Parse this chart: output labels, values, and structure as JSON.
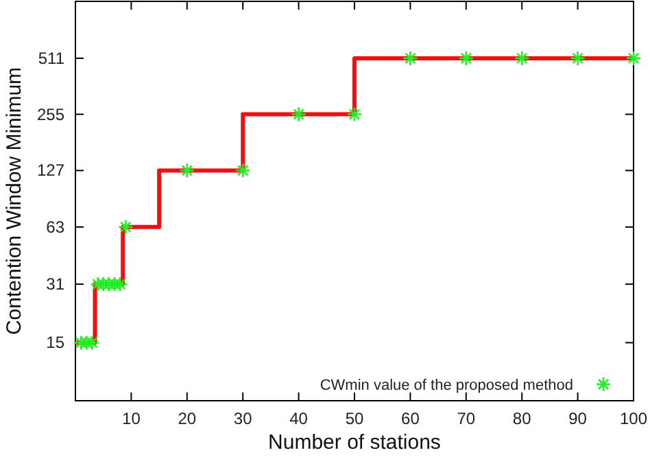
{
  "chart_data": {
    "type": "step",
    "xlabel": "Number of stations",
    "ylabel": "Contention Window Minimum",
    "xlim": [
      0,
      100
    ],
    "xticks": [
      10,
      20,
      30,
      40,
      50,
      60,
      70,
      80,
      90,
      100
    ],
    "ylim": [
      7.3,
      1035
    ],
    "yticks": [
      15,
      31,
      63,
      127,
      255,
      511
    ],
    "log": "y",
    "grid": false,
    "legend": "bottom right",
    "series": [
      {
        "color": "#ee1111",
        "marker": "none",
        "x": [
          0,
          3.5,
          8.5,
          15,
          30,
          50,
          100
        ],
        "values": [
          15,
          31,
          63,
          127,
          255,
          511,
          511
        ]
      },
      {
        "type": "scatter",
        "name": "CWmin value of the proposed method",
        "color": "#22ee22",
        "marker": "cross",
        "x": [
          1,
          2,
          3,
          4,
          5,
          6,
          7,
          8,
          9,
          20,
          30,
          40,
          50,
          60,
          70,
          80,
          90,
          100
        ],
        "values": [
          15,
          15,
          15,
          31,
          31,
          31,
          31,
          31,
          63,
          127,
          127,
          255,
          255,
          511,
          511,
          511,
          511,
          511
        ]
      }
    ]
  }
}
